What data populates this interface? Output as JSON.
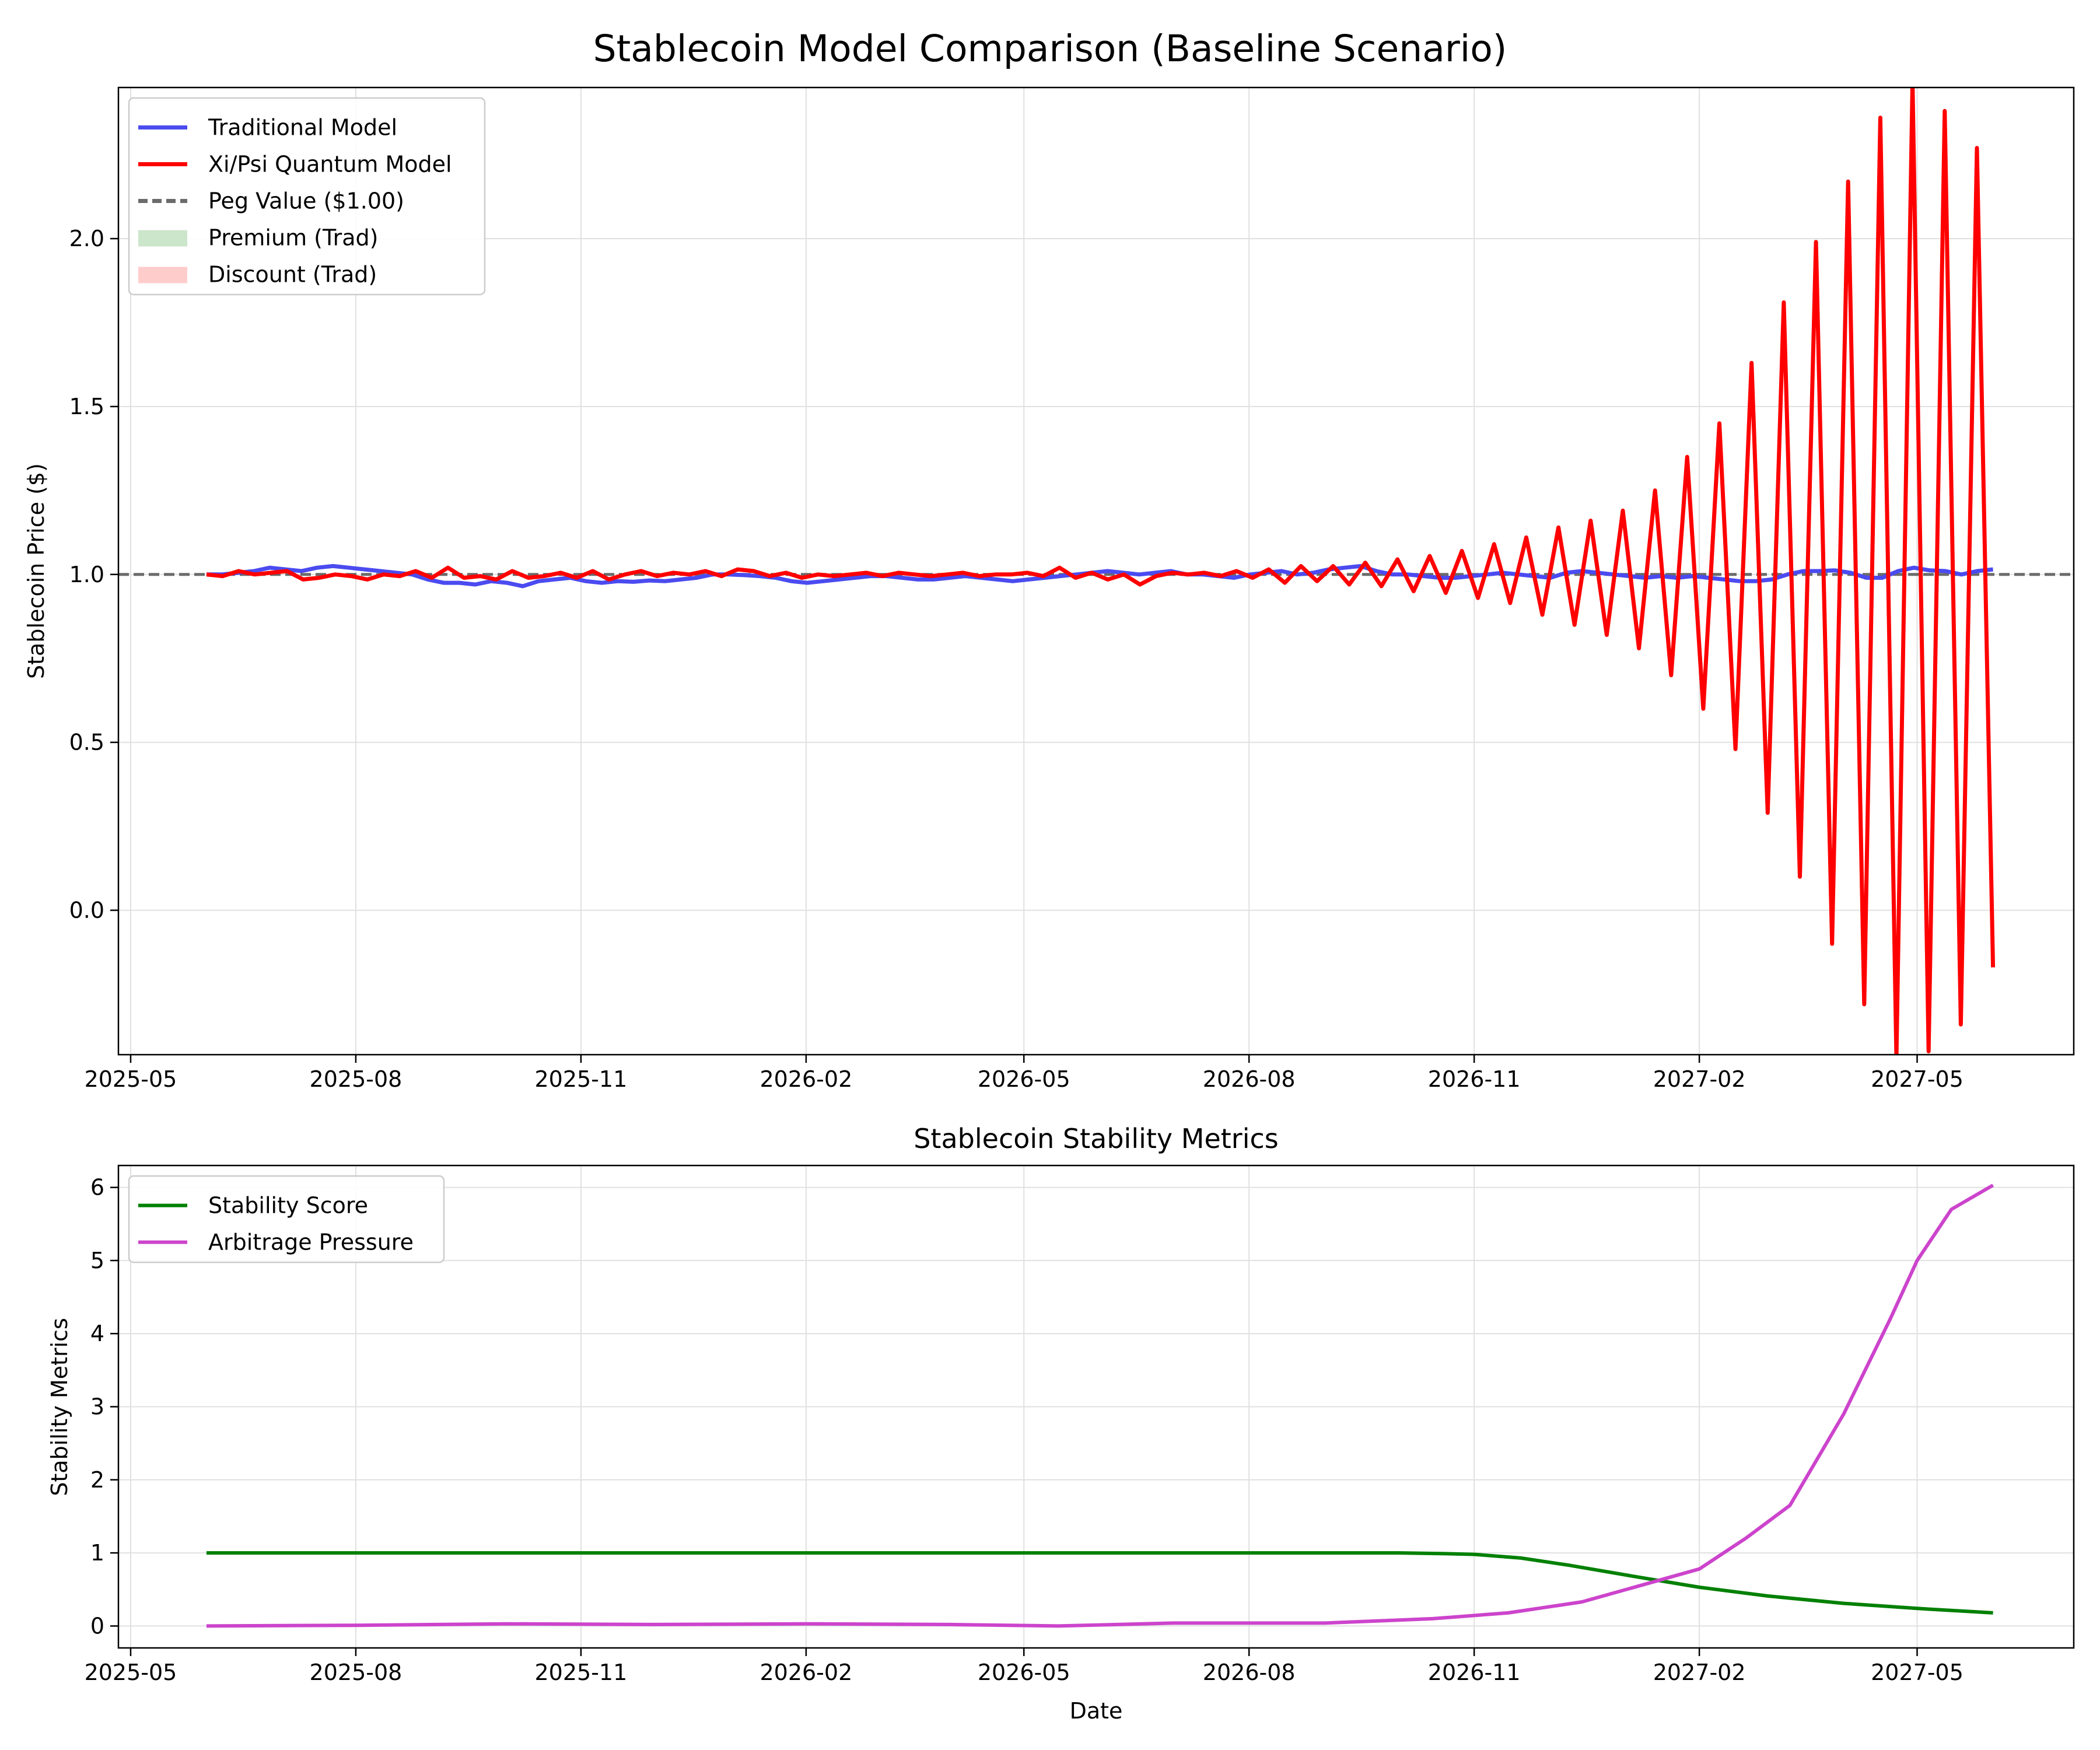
{
  "chart_data": [
    {
      "type": "line",
      "title": "Stablecoin Model Comparison (Baseline Scenario)",
      "xlabel": "",
      "ylabel": "Stablecoin Price ($)",
      "x_ticks": [
        "2025-05",
        "2025-08",
        "2025-11",
        "2026-02",
        "2026-05",
        "2026-08",
        "2026-11",
        "2027-02",
        "2027-05"
      ],
      "y_ticks": [
        "0.0",
        "0.5",
        "1.0",
        "1.5",
        "2.0"
      ],
      "y_tick_values": [
        0.0,
        0.5,
        1.0,
        1.5,
        2.0
      ],
      "xlim": [
        "2025-04-26",
        "2027-07-04"
      ],
      "ylim": [
        -0.43,
        2.45
      ],
      "grid": true,
      "legend_position": "upper-left",
      "legend": [
        {
          "label": "Traditional Model",
          "kind": "line",
          "color": "#4b4bf0"
        },
        {
          "label": "Xi/Psi Quantum Model",
          "kind": "line",
          "color": "#ff0000"
        },
        {
          "label": "Peg Value ($1.00)",
          "kind": "dashed",
          "color": "#6b6b6b"
        },
        {
          "label": "Premium (Trad)",
          "kind": "patch",
          "color": "#cce6cc"
        },
        {
          "label": "Discount (Trad)",
          "kind": "patch",
          "color": "#ffcccc"
        }
      ],
      "peg_value": 1.0,
      "series": [
        {
          "name": "Traditional Model",
          "color": "#4b4bf0",
          "x_start": "2025-06-01",
          "x_end": "2027-06-01",
          "values": [
            1.0,
            1.0,
            1.005,
            1.01,
            1.02,
            1.015,
            1.01,
            1.02,
            1.025,
            1.02,
            1.015,
            1.01,
            1.005,
            1.0,
            0.985,
            0.975,
            0.975,
            0.97,
            0.98,
            0.975,
            0.965,
            0.98,
            0.985,
            0.99,
            0.98,
            0.975,
            0.98,
            0.978,
            0.982,
            0.98,
            0.985,
            0.99,
            1.0,
            1.0,
            0.998,
            0.995,
            0.99,
            0.98,
            0.975,
            0.98,
            0.985,
            0.99,
            0.995,
            0.995,
            0.99,
            0.985,
            0.985,
            0.99,
            0.995,
            0.99,
            0.985,
            0.98,
            0.985,
            0.99,
            0.995,
            1.0,
            1.005,
            1.01,
            1.005,
            1.0,
            1.005,
            1.01,
            1.0,
            1.0,
            0.995,
            0.99,
            1.0,
            1.005,
            1.01,
            1.0,
            1.005,
            1.015,
            1.02,
            1.025,
            1.01,
            1.0,
            1.0,
            0.995,
            0.99,
            0.99,
            0.995,
            1.0,
            1.005,
            1.0,
            0.995,
            0.99,
            1.005,
            1.01,
            1.005,
            1.0,
            0.995,
            0.99,
            0.995,
            0.99,
            0.995,
            0.99,
            0.985,
            0.98,
            0.98,
            0.985,
            1.0,
            1.01,
            1.01,
            1.012,
            1.005,
            0.99,
            0.99,
            1.01,
            1.02,
            1.012,
            1.01,
            1.0,
            1.01,
            1.015
          ]
        },
        {
          "name": "Xi/Psi Quantum Model",
          "color": "#ff0000",
          "x_start": "2025-06-01",
          "x_end": "2027-06-01",
          "values": [
            1.0,
            0.995,
            1.01,
            1.0,
            1.005,
            1.01,
            0.985,
            0.99,
            1.0,
            0.995,
            0.985,
            1.0,
            0.995,
            1.01,
            0.99,
            1.02,
            0.99,
            0.995,
            0.985,
            1.01,
            0.99,
            0.995,
            1.005,
            0.99,
            1.01,
            0.985,
            1.0,
            1.01,
            0.995,
            1.005,
            1.0,
            1.01,
            0.995,
            1.015,
            1.01,
            0.995,
            1.005,
            0.99,
            1.0,
            0.995,
            1.0,
            1.005,
            0.995,
            1.005,
            1.0,
            0.995,
            1.0,
            1.005,
            0.995,
            1.0,
            1.0,
            1.005,
            0.995,
            1.02,
            0.99,
            1.005,
            0.985,
            1.0,
            0.97,
            0.995,
            1.005,
            1.0,
            1.005,
            0.995,
            1.01,
            0.99,
            1.015,
            0.975,
            1.025,
            0.98,
            1.025,
            0.97,
            1.035,
            0.965,
            1.045,
            0.95,
            1.055,
            0.945,
            1.07,
            0.93,
            1.09,
            0.915,
            1.11,
            0.88,
            1.14,
            0.85,
            1.16,
            0.82,
            1.19,
            0.78,
            1.25,
            0.7,
            1.35,
            0.6,
            1.45,
            0.48,
            1.63,
            0.29,
            1.81,
            0.1,
            1.99,
            -0.1,
            2.17,
            -0.28,
            2.36,
            -0.44,
            2.47,
            -0.42,
            2.38,
            -0.34,
            2.27,
            -0.17
          ]
        }
      ]
    },
    {
      "type": "line",
      "title": "Stablecoin Stability Metrics",
      "xlabel": "Date",
      "ylabel": "Stability Metrics",
      "x_ticks": [
        "2025-05",
        "2025-08",
        "2025-11",
        "2026-02",
        "2026-05",
        "2026-08",
        "2026-11",
        "2027-02",
        "2027-05"
      ],
      "y_ticks": [
        "0",
        "1",
        "2",
        "3",
        "4",
        "5",
        "6"
      ],
      "y_tick_values": [
        0,
        1,
        2,
        3,
        4,
        5,
        6
      ],
      "xlim": [
        "2025-04-26",
        "2027-07-04"
      ],
      "ylim": [
        -0.3,
        6.3
      ],
      "grid": true,
      "legend_position": "upper-left",
      "legend": [
        {
          "label": "Stability Score",
          "kind": "line",
          "color": "#008000"
        },
        {
          "label": "Arbitrage Pressure",
          "kind": "line",
          "color": "#cc44cc"
        }
      ],
      "series": [
        {
          "name": "Stability Score",
          "color": "#008000",
          "x": [
            "2025-06-01",
            "2026-10-01",
            "2026-10-20",
            "2026-11-01",
            "2026-11-20",
            "2026-12-10",
            "2027-01-05",
            "2027-02-01",
            "2027-03-01",
            "2027-04-01",
            "2027-05-01",
            "2027-06-01"
          ],
          "values": [
            1.0,
            1.0,
            0.99,
            0.98,
            0.93,
            0.83,
            0.68,
            0.53,
            0.41,
            0.31,
            0.24,
            0.18
          ]
        },
        {
          "name": "Arbitrage Pressure",
          "color": "#cc44cc",
          "x": [
            "2025-06-01",
            "2025-08-01",
            "2025-10-01",
            "2025-12-01",
            "2026-02-01",
            "2026-04-01",
            "2026-05-15",
            "2026-07-01",
            "2026-09-01",
            "2026-10-15",
            "2026-11-15",
            "2026-12-15",
            "2027-01-15",
            "2027-02-01",
            "2027-02-20",
            "2027-03-10",
            "2027-04-01",
            "2027-04-20",
            "2027-05-01",
            "2027-05-15",
            "2027-06-01"
          ],
          "values": [
            0.0,
            0.01,
            0.03,
            0.02,
            0.03,
            0.02,
            0.0,
            0.04,
            0.04,
            0.1,
            0.18,
            0.33,
            0.62,
            0.78,
            1.2,
            1.65,
            2.9,
            4.2,
            5.0,
            5.7,
            6.03
          ]
        }
      ]
    }
  ]
}
